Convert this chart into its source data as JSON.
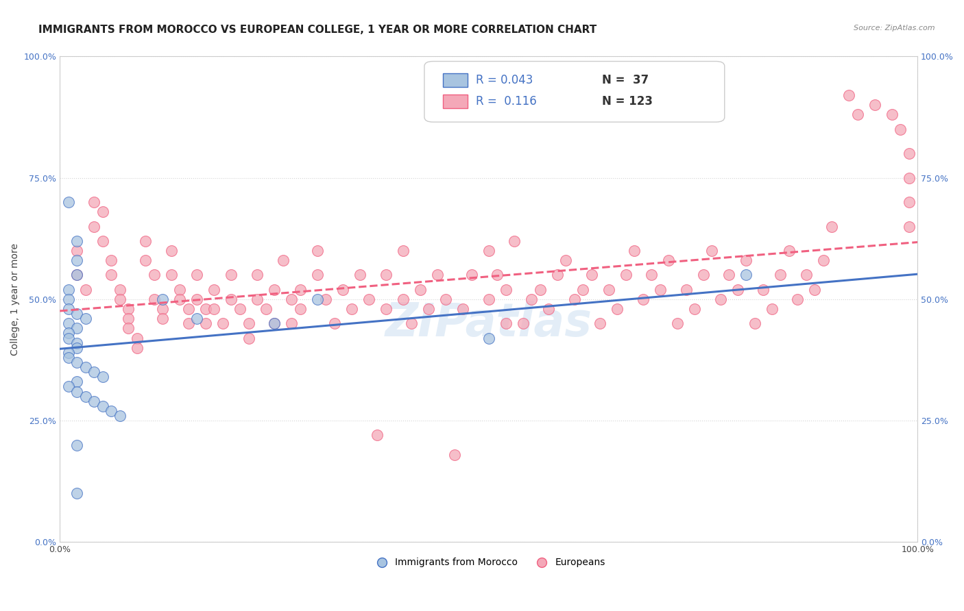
{
  "title": "IMMIGRANTS FROM MOROCCO VS EUROPEAN COLLEGE, 1 YEAR OR MORE CORRELATION CHART",
  "source": "Source: ZipAtlas.com",
  "xlabel": "",
  "ylabel": "College, 1 year or more",
  "xlim": [
    0,
    1.0
  ],
  "ylim": [
    0,
    1.0
  ],
  "ytick_vals": [
    0.0,
    0.25,
    0.5,
    0.75,
    1.0
  ],
  "watermark": "ZIPatlas",
  "legend_blue_r": "0.043",
  "legend_blue_n": "37",
  "legend_pink_r": "0.116",
  "legend_pink_n": "123",
  "blue_color": "#a8c4e0",
  "pink_color": "#f4a8b8",
  "blue_line_color": "#4472c4",
  "pink_line_color": "#f06080",
  "blue_scatter": [
    [
      0.02,
      0.62
    ],
    [
      0.01,
      0.7
    ],
    [
      0.02,
      0.58
    ],
    [
      0.02,
      0.55
    ],
    [
      0.01,
      0.52
    ],
    [
      0.01,
      0.5
    ],
    [
      0.01,
      0.48
    ],
    [
      0.02,
      0.47
    ],
    [
      0.03,
      0.46
    ],
    [
      0.01,
      0.45
    ],
    [
      0.02,
      0.44
    ],
    [
      0.01,
      0.43
    ],
    [
      0.01,
      0.42
    ],
    [
      0.02,
      0.41
    ],
    [
      0.02,
      0.4
    ],
    [
      0.01,
      0.39
    ],
    [
      0.01,
      0.38
    ],
    [
      0.02,
      0.37
    ],
    [
      0.03,
      0.36
    ],
    [
      0.04,
      0.35
    ],
    [
      0.05,
      0.34
    ],
    [
      0.02,
      0.33
    ],
    [
      0.01,
      0.32
    ],
    [
      0.02,
      0.31
    ],
    [
      0.03,
      0.3
    ],
    [
      0.04,
      0.29
    ],
    [
      0.05,
      0.28
    ],
    [
      0.06,
      0.27
    ],
    [
      0.07,
      0.26
    ],
    [
      0.12,
      0.5
    ],
    [
      0.16,
      0.46
    ],
    [
      0.25,
      0.45
    ],
    [
      0.3,
      0.5
    ],
    [
      0.02,
      0.2
    ],
    [
      0.02,
      0.1
    ],
    [
      0.5,
      0.42
    ],
    [
      0.8,
      0.55
    ]
  ],
  "pink_scatter": [
    [
      0.02,
      0.6
    ],
    [
      0.02,
      0.55
    ],
    [
      0.03,
      0.52
    ],
    [
      0.04,
      0.7
    ],
    [
      0.04,
      0.65
    ],
    [
      0.05,
      0.68
    ],
    [
      0.05,
      0.62
    ],
    [
      0.06,
      0.58
    ],
    [
      0.06,
      0.55
    ],
    [
      0.07,
      0.52
    ],
    [
      0.07,
      0.5
    ],
    [
      0.08,
      0.48
    ],
    [
      0.08,
      0.46
    ],
    [
      0.08,
      0.44
    ],
    [
      0.09,
      0.42
    ],
    [
      0.09,
      0.4
    ],
    [
      0.1,
      0.62
    ],
    [
      0.1,
      0.58
    ],
    [
      0.11,
      0.55
    ],
    [
      0.11,
      0.5
    ],
    [
      0.12,
      0.48
    ],
    [
      0.12,
      0.46
    ],
    [
      0.13,
      0.6
    ],
    [
      0.13,
      0.55
    ],
    [
      0.14,
      0.52
    ],
    [
      0.14,
      0.5
    ],
    [
      0.15,
      0.48
    ],
    [
      0.15,
      0.45
    ],
    [
      0.16,
      0.55
    ],
    [
      0.16,
      0.5
    ],
    [
      0.17,
      0.48
    ],
    [
      0.17,
      0.45
    ],
    [
      0.18,
      0.52
    ],
    [
      0.18,
      0.48
    ],
    [
      0.19,
      0.45
    ],
    [
      0.2,
      0.55
    ],
    [
      0.2,
      0.5
    ],
    [
      0.21,
      0.48
    ],
    [
      0.22,
      0.45
    ],
    [
      0.22,
      0.42
    ],
    [
      0.23,
      0.55
    ],
    [
      0.23,
      0.5
    ],
    [
      0.24,
      0.48
    ],
    [
      0.25,
      0.45
    ],
    [
      0.25,
      0.52
    ],
    [
      0.26,
      0.58
    ],
    [
      0.27,
      0.5
    ],
    [
      0.27,
      0.45
    ],
    [
      0.28,
      0.52
    ],
    [
      0.28,
      0.48
    ],
    [
      0.3,
      0.6
    ],
    [
      0.3,
      0.55
    ],
    [
      0.31,
      0.5
    ],
    [
      0.32,
      0.45
    ],
    [
      0.33,
      0.52
    ],
    [
      0.34,
      0.48
    ],
    [
      0.35,
      0.55
    ],
    [
      0.36,
      0.5
    ],
    [
      0.37,
      0.22
    ],
    [
      0.38,
      0.48
    ],
    [
      0.38,
      0.55
    ],
    [
      0.4,
      0.6
    ],
    [
      0.4,
      0.5
    ],
    [
      0.41,
      0.45
    ],
    [
      0.42,
      0.52
    ],
    [
      0.43,
      0.48
    ],
    [
      0.44,
      0.55
    ],
    [
      0.45,
      0.5
    ],
    [
      0.46,
      0.18
    ],
    [
      0.47,
      0.48
    ],
    [
      0.48,
      0.55
    ],
    [
      0.5,
      0.6
    ],
    [
      0.5,
      0.5
    ],
    [
      0.51,
      0.55
    ],
    [
      0.52,
      0.45
    ],
    [
      0.52,
      0.52
    ],
    [
      0.53,
      0.62
    ],
    [
      0.54,
      0.45
    ],
    [
      0.55,
      0.5
    ],
    [
      0.56,
      0.52
    ],
    [
      0.57,
      0.48
    ],
    [
      0.58,
      0.55
    ],
    [
      0.59,
      0.58
    ],
    [
      0.6,
      0.5
    ],
    [
      0.61,
      0.52
    ],
    [
      0.62,
      0.55
    ],
    [
      0.63,
      0.45
    ],
    [
      0.64,
      0.52
    ],
    [
      0.65,
      0.48
    ],
    [
      0.66,
      0.55
    ],
    [
      0.67,
      0.6
    ],
    [
      0.68,
      0.5
    ],
    [
      0.69,
      0.55
    ],
    [
      0.7,
      0.52
    ],
    [
      0.71,
      0.58
    ],
    [
      0.72,
      0.45
    ],
    [
      0.73,
      0.52
    ],
    [
      0.74,
      0.48
    ],
    [
      0.75,
      0.55
    ],
    [
      0.76,
      0.6
    ],
    [
      0.77,
      0.5
    ],
    [
      0.78,
      0.55
    ],
    [
      0.79,
      0.52
    ],
    [
      0.8,
      0.58
    ],
    [
      0.81,
      0.45
    ],
    [
      0.82,
      0.52
    ],
    [
      0.83,
      0.48
    ],
    [
      0.84,
      0.55
    ],
    [
      0.85,
      0.6
    ],
    [
      0.86,
      0.5
    ],
    [
      0.87,
      0.55
    ],
    [
      0.88,
      0.52
    ],
    [
      0.89,
      0.58
    ],
    [
      0.9,
      0.65
    ],
    [
      0.92,
      0.92
    ],
    [
      0.93,
      0.88
    ],
    [
      0.95,
      0.9
    ],
    [
      0.97,
      0.88
    ],
    [
      0.98,
      0.85
    ],
    [
      0.99,
      0.8
    ],
    [
      0.99,
      0.75
    ],
    [
      0.99,
      0.7
    ],
    [
      0.99,
      0.65
    ]
  ],
  "title_fontsize": 11,
  "axis_label_fontsize": 10,
  "tick_fontsize": 9,
  "watermark_fontsize": 48,
  "background_color": "#ffffff",
  "grid_color": "#d0d0d0"
}
